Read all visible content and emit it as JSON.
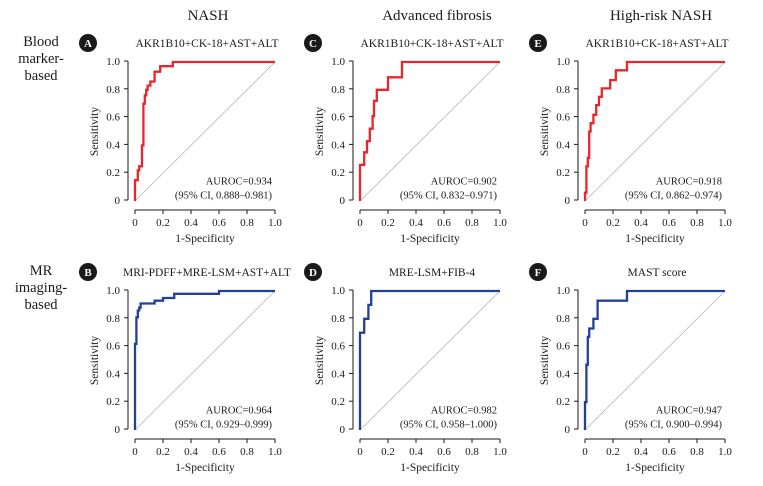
{
  "column_titles": [
    "NASH",
    "Advanced fibrosis",
    "High-risk NASH"
  ],
  "row_labels": [
    [
      "Blood",
      "marker-",
      "based"
    ],
    [
      "MR",
      "imaging-",
      "based"
    ]
  ],
  "colors": {
    "red": "#e8262d",
    "blue": "#22409a",
    "diag": "#b5b5b5",
    "axis": "#1a1a1a",
    "badge": "#1a1a1a"
  },
  "chart_data": [
    {
      "type": "line",
      "panel": "A",
      "title": "AKR1B10+CK-18+AST+ALT",
      "xlabel": "1-Specificity",
      "ylabel": "Sensitivity",
      "xlim": [
        0,
        1
      ],
      "ylim": [
        0,
        1
      ],
      "xticks": [
        "0",
        "0.2",
        "0.4",
        "0.6",
        "0.8",
        "1.0"
      ],
      "yticks": [
        "0",
        "0.2",
        "0.4",
        "0.6",
        "0.8",
        "1.0"
      ],
      "color": "red",
      "auroc_label": "AUROC=0.934",
      "ci_label": "(95% CI, 0.888–0.981)",
      "series": [
        {
          "name": "ROC",
          "x": [
            0,
            0,
            0.02,
            0.02,
            0.03,
            0.03,
            0.05,
            0.05,
            0.06,
            0.06,
            0.07,
            0.07,
            0.08,
            0.08,
            0.09,
            0.09,
            0.11,
            0.11,
            0.14,
            0.14,
            0.18,
            0.18,
            0.27,
            0.27,
            1.0
          ],
          "y": [
            0,
            0.15,
            0.15,
            0.22,
            0.22,
            0.25,
            0.25,
            0.4,
            0.4,
            0.7,
            0.7,
            0.76,
            0.76,
            0.8,
            0.8,
            0.83,
            0.83,
            0.86,
            0.86,
            0.93,
            0.93,
            0.97,
            0.97,
            1.0,
            1.0
          ]
        }
      ]
    },
    {
      "type": "line",
      "panel": "C",
      "title": "AKR1B10+CK-18+AST+ALT",
      "xlabel": "1-Specificity",
      "ylabel": "Sensitivity",
      "xlim": [
        0,
        1
      ],
      "ylim": [
        0,
        1
      ],
      "xticks": [
        "0",
        "0.2",
        "0.4",
        "0.6",
        "0.8",
        "1.0"
      ],
      "yticks": [
        "0",
        "0.2",
        "0.4",
        "0.6",
        "0.8",
        "1.0"
      ],
      "color": "red",
      "auroc_label": "AUROC=0.902",
      "ci_label": "(95% CI, 0.832–0.971)",
      "series": [
        {
          "name": "ROC",
          "x": [
            0,
            0,
            0.03,
            0.03,
            0.05,
            0.05,
            0.07,
            0.07,
            0.09,
            0.09,
            0.1,
            0.1,
            0.12,
            0.12,
            0.2,
            0.2,
            0.3,
            0.3,
            1.0
          ],
          "y": [
            0,
            0.26,
            0.26,
            0.35,
            0.35,
            0.43,
            0.43,
            0.52,
            0.52,
            0.61,
            0.61,
            0.72,
            0.72,
            0.8,
            0.8,
            0.89,
            0.89,
            1.0,
            1.0
          ]
        }
      ]
    },
    {
      "type": "line",
      "panel": "E",
      "title": "AKR1B10+CK-18+AST+ALT",
      "xlabel": "1-Specificity",
      "ylabel": "Sensitivity",
      "xlim": [
        0,
        1
      ],
      "ylim": [
        0,
        1
      ],
      "xticks": [
        "0",
        "0.2",
        "0.4",
        "0.6",
        "0.8",
        "1.0"
      ],
      "yticks": [
        "0",
        "0.2",
        "0.4",
        "0.6",
        "0.8",
        "1.0"
      ],
      "color": "red",
      "auroc_label": "AUROC=0.918",
      "ci_label": "(95% CI, 0.862–0.974)",
      "series": [
        {
          "name": "ROC",
          "x": [
            0,
            0,
            0.01,
            0.01,
            0.02,
            0.02,
            0.03,
            0.03,
            0.04,
            0.04,
            0.06,
            0.06,
            0.08,
            0.08,
            0.1,
            0.1,
            0.12,
            0.12,
            0.18,
            0.18,
            0.22,
            0.22,
            0.3,
            0.3,
            1.0
          ],
          "y": [
            0,
            0.06,
            0.06,
            0.25,
            0.25,
            0.31,
            0.31,
            0.5,
            0.5,
            0.56,
            0.56,
            0.62,
            0.62,
            0.69,
            0.69,
            0.75,
            0.75,
            0.81,
            0.81,
            0.87,
            0.87,
            0.94,
            0.94,
            1.0,
            1.0
          ]
        }
      ]
    },
    {
      "type": "line",
      "panel": "B",
      "title": "MRI-PDFF+MRE-LSM+AST+ALT",
      "xlabel": "1-Specificity",
      "ylabel": "Sensitivity",
      "xlim": [
        0,
        1
      ],
      "ylim": [
        0,
        1
      ],
      "xticks": [
        "0",
        "0.2",
        "0.4",
        "0.6",
        "0.8",
        "1.0"
      ],
      "yticks": [
        "0",
        "0.2",
        "0.4",
        "0.6",
        "0.8",
        "1.0"
      ],
      "color": "blue",
      "auroc_label": "AUROC=0.964",
      "ci_label": "(95% CI, 0.929–0.999)",
      "series": [
        {
          "name": "ROC",
          "x": [
            0,
            0,
            0.01,
            0.01,
            0.02,
            0.02,
            0.03,
            0.03,
            0.04,
            0.04,
            0.14,
            0.14,
            0.2,
            0.2,
            0.28,
            0.28,
            0.6,
            0.6,
            1.0
          ],
          "y": [
            0,
            0.62,
            0.62,
            0.81,
            0.81,
            0.86,
            0.86,
            0.88,
            0.88,
            0.91,
            0.91,
            0.93,
            0.93,
            0.95,
            0.95,
            0.98,
            0.98,
            1.0,
            1.0
          ]
        }
      ]
    },
    {
      "type": "line",
      "panel": "D",
      "title": "MRE-LSM+FIB-4",
      "xlabel": "1-Specificity",
      "ylabel": "Sensitivity",
      "xlim": [
        0,
        1
      ],
      "ylim": [
        0,
        1
      ],
      "xticks": [
        "0",
        "0.2",
        "0.4",
        "0.6",
        "0.8",
        "1.0"
      ],
      "yticks": [
        "0",
        "0.2",
        "0.4",
        "0.6",
        "0.8",
        "1.0"
      ],
      "color": "blue",
      "auroc_label": "AUROC=0.982",
      "ci_label": "(95% CI, 0.958–1.000)",
      "series": [
        {
          "name": "ROC",
          "x": [
            0,
            0,
            0.03,
            0.03,
            0.06,
            0.06,
            0.08,
            0.08,
            1.0
          ],
          "y": [
            0,
            0.7,
            0.7,
            0.8,
            0.8,
            0.9,
            0.9,
            1.0,
            1.0
          ]
        }
      ]
    },
    {
      "type": "line",
      "panel": "F",
      "title": "MAST score",
      "xlabel": "1-Specificity",
      "ylabel": "Sensitivity",
      "xlim": [
        0,
        1
      ],
      "ylim": [
        0,
        1
      ],
      "xticks": [
        "0",
        "0.2",
        "0.4",
        "0.6",
        "0.8",
        "1.0"
      ],
      "yticks": [
        "0",
        "0.2",
        "0.4",
        "0.6",
        "0.8",
        "1.0"
      ],
      "color": "blue",
      "auroc_label": "AUROC=0.947",
      "ci_label": "(95% CI, 0.900–0.994)",
      "series": [
        {
          "name": "ROC",
          "x": [
            0,
            0,
            0.01,
            0.01,
            0.02,
            0.02,
            0.03,
            0.03,
            0.06,
            0.06,
            0.09,
            0.09,
            0.12,
            0.12,
            0.3,
            0.3,
            1.0
          ],
          "y": [
            0,
            0.2,
            0.2,
            0.47,
            0.47,
            0.67,
            0.67,
            0.73,
            0.73,
            0.8,
            0.8,
            0.93,
            0.93,
            0.93,
            0.93,
            1.0,
            1.0
          ]
        }
      ]
    }
  ]
}
